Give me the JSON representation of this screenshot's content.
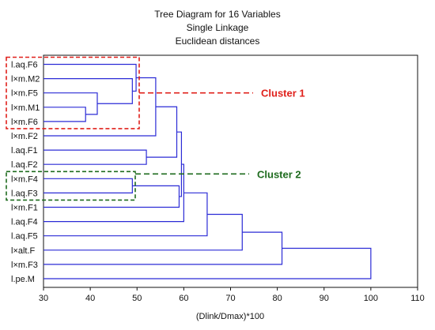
{
  "chart_data": {
    "type": "dendrogram",
    "title_lines": [
      "Tree Diagram for 16 Variables",
      "Single Linkage",
      "Euclidean distances"
    ],
    "xlabel": "(Dlink/Dmax)*100",
    "xlim": [
      30,
      110
    ],
    "xticks": [
      30,
      40,
      50,
      60,
      70,
      80,
      90,
      100,
      110
    ],
    "grid": false,
    "leaves": [
      "l.aq.F6",
      "l×m.M2",
      "l×m.F5",
      "l×m.M1",
      "l×m.F6",
      "l×m.F2",
      "l.aq.F1",
      "l.aq.F2",
      "l×m.F4",
      "l.aq.F3",
      "l×m.F1",
      "l.aq.F4",
      "l.aq.F5",
      "l×alt.F",
      "l×m.F3",
      "l.pe.M"
    ],
    "merges": [
      {
        "a": 3,
        "b": 4,
        "height": 39
      },
      {
        "a": 2,
        "b": 16,
        "height": 41.5
      },
      {
        "a": 1,
        "b": 17,
        "height": 49
      },
      {
        "a": 0,
        "b": 18,
        "height": 49.8
      },
      {
        "a": 6,
        "b": 7,
        "height": 52
      },
      {
        "a": 8,
        "b": 9,
        "height": 49
      },
      {
        "a": 19,
        "b": 5,
        "height": 54
      },
      {
        "a": 22,
        "b": 20,
        "height": 58.5
      },
      {
        "a": 21,
        "b": 10,
        "height": 59
      },
      {
        "a": 23,
        "b": 24,
        "height": 59.5
      },
      {
        "a": 25,
        "b": 11,
        "height": 60
      },
      {
        "a": 26,
        "b": 12,
        "height": 65
      },
      {
        "a": 27,
        "b": 13,
        "height": 72.5
      },
      {
        "a": 28,
        "b": 14,
        "height": 81
      },
      {
        "a": 29,
        "b": 15,
        "height": 100
      }
    ],
    "annotations": [
      {
        "label": "Cluster 1",
        "color": "#e0201b",
        "leaves": [
          0,
          1,
          2,
          3,
          4
        ]
      },
      {
        "label": "Cluster 2",
        "color": "#1e6b1e",
        "leaves": [
          8,
          9
        ]
      }
    ],
    "colors": {
      "line": "#2b2bd6",
      "axis": "#111111"
    }
  }
}
